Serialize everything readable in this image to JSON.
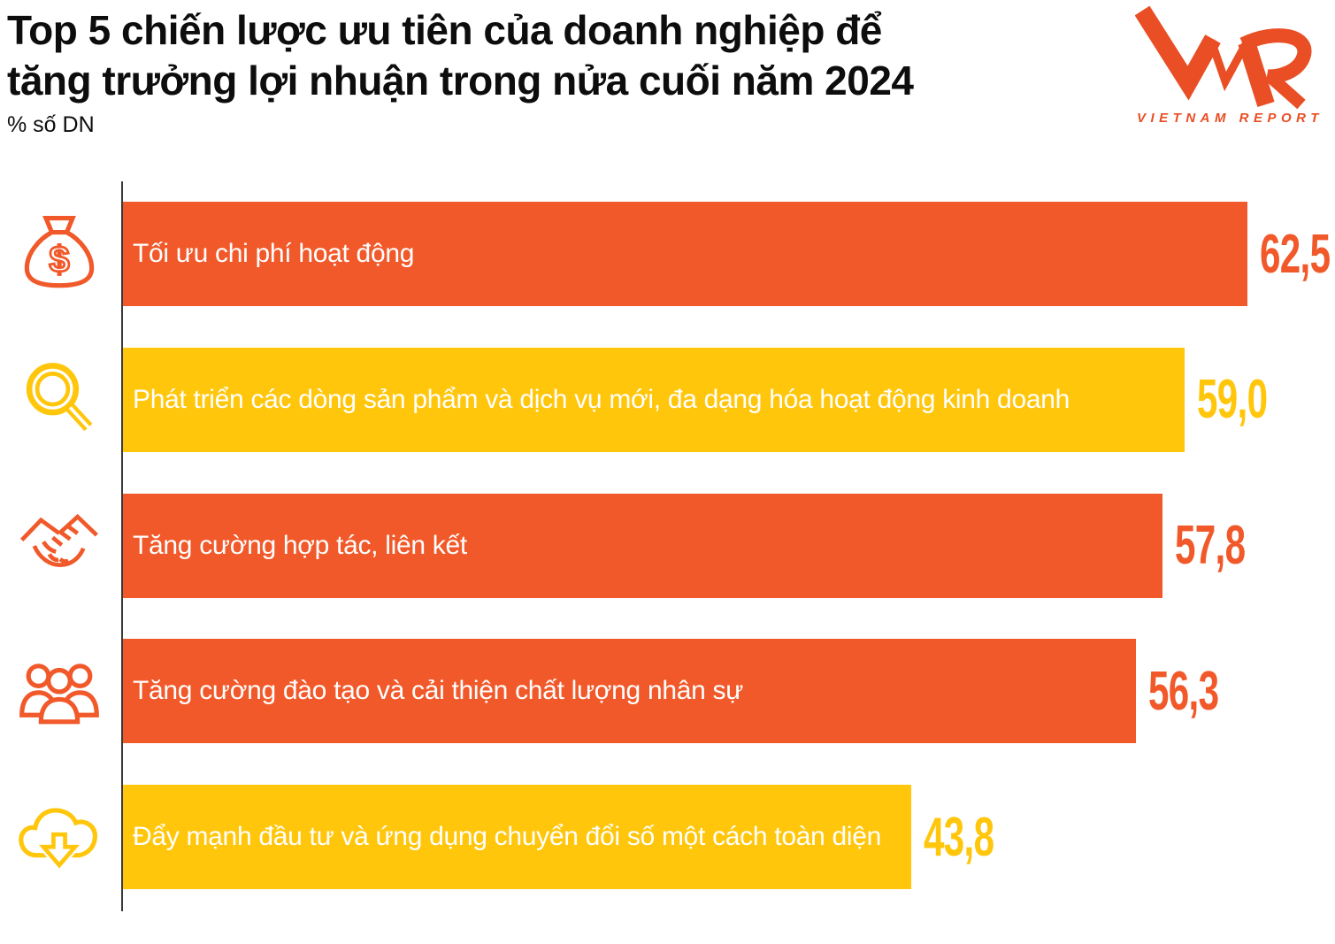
{
  "header": {
    "title": "Top 5 chiến lược ưu tiên của doanh nghiệp để tăng trưởng lợi nhuận trong nửa cuối năm 2024",
    "title_line1": "Top 5 chiến lược ưu tiên của doanh nghiệp để",
    "title_line2": "tăng trưởng lợi nhuận trong nửa cuối năm 2024",
    "subtitle": "% số DN"
  },
  "logo": {
    "text": "VNR",
    "caption": "VIETNAM REPORT",
    "color": "#E94E24"
  },
  "chart_data": {
    "type": "bar",
    "orientation": "horizontal",
    "title": "Top 5 chiến lược ưu tiên của doanh nghiệp để tăng trưởng lợi nhuận trong nửa cuối năm 2024",
    "xlabel": "% số DN",
    "categories": [
      "Tối ưu chi phí hoạt động",
      "Phát triển các dòng sản phẩm và dịch vụ mới, đa dạng hóa hoạt động kinh doanh",
      "Tăng cường hợp tác, liên kết",
      "Tăng cường đào tạo và cải thiện chất lượng nhân sự",
      "Đẩy mạnh đầu tư và ứng dụng chuyển đổi số một cách toàn diện"
    ],
    "values": [
      62.5,
      59.0,
      57.8,
      56.3,
      43.8
    ],
    "value_labels": [
      "62,5",
      "59,0",
      "57,8",
      "56,3",
      "43,8"
    ],
    "bar_colors": [
      "#F1592A",
      "#FFC60B",
      "#F1592A",
      "#F1592A",
      "#FFC60B"
    ],
    "icons": [
      "money-bag-icon",
      "magnifier-icon",
      "handshake-icon",
      "people-group-icon",
      "cloud-download-icon"
    ],
    "xlim": [
      0,
      70
    ],
    "grid": false,
    "legend": false
  },
  "colors": {
    "orange": "#F1592A",
    "yellow": "#FFC60B",
    "bar_text": "#FFFFFF",
    "axis": "#3A3A3A",
    "title_text": "#0D0D0D"
  }
}
